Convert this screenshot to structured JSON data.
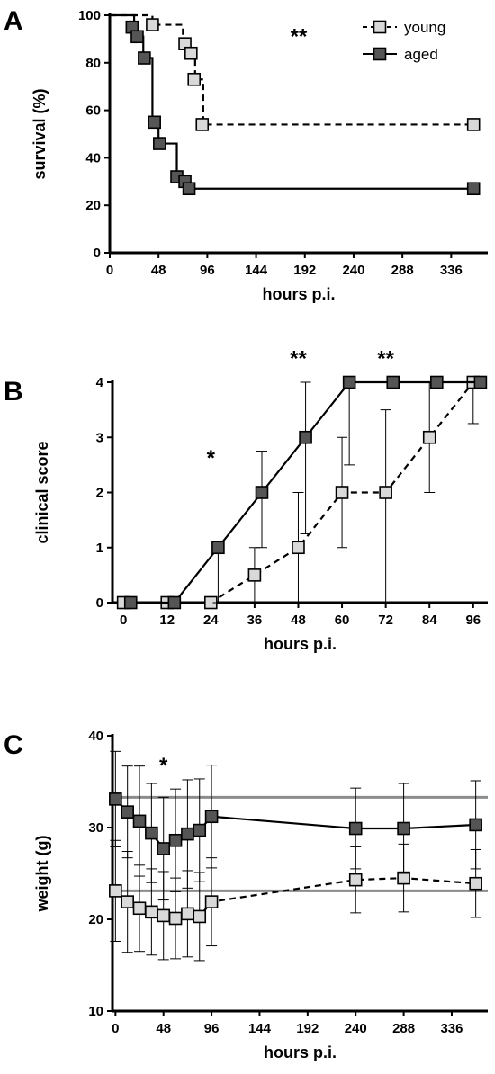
{
  "chart_data": [
    {
      "panel": "A",
      "type": "line",
      "style": "step",
      "xlabel": "hours p.i.",
      "ylabel": "survival (%)",
      "xlim": [
        0,
        372
      ],
      "ylim": [
        0,
        100
      ],
      "xticks": [
        0,
        48,
        96,
        144,
        192,
        240,
        288,
        336
      ],
      "yticks": [
        0,
        20,
        40,
        60,
        80,
        100
      ],
      "legend": "top-right",
      "annotations": [
        {
          "text": "**",
          "x": 186,
          "y": 88
        }
      ],
      "series": [
        {
          "name": "young",
          "dashed": true,
          "color": "#d9d9d9",
          "step": [
            [
              0,
              100
            ],
            [
              42,
              100
            ],
            [
              42,
              96
            ],
            [
              72,
              96
            ],
            [
              72,
              88
            ],
            [
              78,
              88
            ],
            [
              78,
              84
            ],
            [
              84,
              84
            ],
            [
              84,
              73
            ],
            [
              92,
              73
            ],
            [
              92,
              54
            ],
            [
              360,
              54
            ]
          ],
          "markers": [
            [
              42,
              96
            ],
            [
              74,
              88
            ],
            [
              80,
              84
            ],
            [
              83,
              73
            ],
            [
              91,
              54
            ],
            [
              358,
              54
            ]
          ]
        },
        {
          "name": "aged",
          "dashed": false,
          "color": "#555555",
          "step": [
            [
              0,
              100
            ],
            [
              24,
              100
            ],
            [
              24,
              95
            ],
            [
              28,
              95
            ],
            [
              28,
              91
            ],
            [
              33,
              91
            ],
            [
              33,
              82
            ],
            [
              42,
              82
            ],
            [
              42,
              55
            ],
            [
              48,
              55
            ],
            [
              48,
              46
            ],
            [
              66,
              46
            ],
            [
              66,
              32
            ],
            [
              78,
              32
            ],
            [
              78,
              27
            ],
            [
              360,
              27
            ]
          ],
          "markers": [
            [
              22,
              95
            ],
            [
              27,
              91
            ],
            [
              34,
              82
            ],
            [
              44,
              55
            ],
            [
              49,
              46
            ],
            [
              66,
              32
            ],
            [
              74,
              30
            ],
            [
              78,
              27
            ],
            [
              358,
              27
            ]
          ]
        }
      ]
    },
    {
      "panel": "B",
      "type": "line",
      "xlabel": "hours p.i.",
      "ylabel": "clinical score",
      "xlim": [
        -3,
        100
      ],
      "ylim": [
        0,
        4
      ],
      "xticks": [
        0,
        12,
        24,
        36,
        48,
        60,
        72,
        84,
        96
      ],
      "yticks": [
        0,
        1,
        2,
        3,
        4
      ],
      "annotations": [
        {
          "text": "*",
          "x": 24,
          "y": 2.5
        },
        {
          "text": "**",
          "x": 48,
          "y": 4.3
        },
        {
          "text": "**",
          "x": 72,
          "y": 4.3
        }
      ],
      "series": [
        {
          "name": "young",
          "dashed": true,
          "color": "#d9d9d9",
          "x": [
            0,
            12,
            24,
            36,
            48,
            60,
            72,
            84,
            96
          ],
          "y": [
            0,
            0,
            0,
            0.5,
            1,
            2,
            2,
            3,
            4
          ],
          "err_lo": [
            0,
            0,
            0,
            0,
            0,
            1,
            0,
            2,
            3.25
          ],
          "err_hi": [
            0,
            0,
            0,
            1,
            2,
            3,
            3.5,
            4,
            4
          ]
        },
        {
          "name": "aged",
          "dashed": false,
          "color": "#555555",
          "x": [
            2,
            14,
            26,
            38,
            50,
            62,
            74,
            86,
            98
          ],
          "y": [
            0,
            0,
            1,
            2,
            3,
            4,
            4,
            4,
            4
          ],
          "err_lo": [
            0,
            0,
            0,
            1,
            1.25,
            2.5,
            4,
            4,
            4
          ],
          "err_hi": [
            0,
            0,
            1,
            2.75,
            4,
            4,
            4,
            4,
            4
          ]
        }
      ]
    },
    {
      "panel": "C",
      "type": "line",
      "xlabel": "hours p.i.",
      "ylabel": "weight (g)",
      "xlim": [
        -3,
        372
      ],
      "ylim": [
        10,
        40
      ],
      "xticks": [
        0,
        48,
        96,
        144,
        192,
        240,
        288,
        336
      ],
      "yticks": [
        10,
        20,
        30,
        40
      ],
      "reference_lines": [
        33.3,
        23.1
      ],
      "annotations": [
        {
          "text": "*",
          "x": 48,
          "y": 36
        }
      ],
      "series": [
        {
          "name": "young",
          "dashed": true,
          "color": "#d9d9d9",
          "x": [
            0,
            12,
            24,
            36,
            48,
            60,
            72,
            84,
            96,
            240,
            288,
            360
          ],
          "y": [
            23.1,
            21.9,
            21.2,
            20.8,
            20.4,
            20.1,
            20.6,
            20.3,
            21.9,
            24.3,
            24.5,
            23.9
          ],
          "err": [
            5.5,
            5.5,
            4.7,
            4.7,
            4.8,
            4.4,
            4.7,
            4.8,
            4.8,
            3.6,
            3.7,
            3.7
          ]
        },
        {
          "name": "aged",
          "dashed": false,
          "color": "#555555",
          "x": [
            0,
            12,
            24,
            36,
            48,
            60,
            72,
            84,
            96,
            240,
            288,
            360
          ],
          "y": [
            33.1,
            31.7,
            30.7,
            29.4,
            27.7,
            28.6,
            29.3,
            29.7,
            31.2,
            29.9,
            29.9,
            30.3
          ],
          "err": [
            5.2,
            5,
            6,
            5.4,
            5.6,
            5.6,
            5.9,
            5.6,
            5.6,
            4.4,
            4.9,
            4.8
          ]
        }
      ]
    }
  ],
  "panel_letters": [
    "A",
    "B",
    "C"
  ]
}
